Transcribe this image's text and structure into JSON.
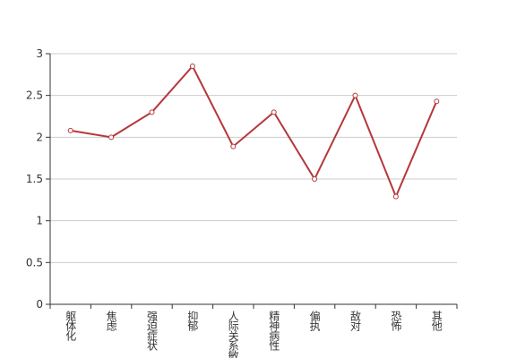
{
  "chart_data": {
    "type": "line",
    "categories": [
      "躯体化",
      "焦虑",
      "强迫症状",
      "抑郁",
      "人际关系敏感",
      "精神病性",
      "偏执",
      "敌对",
      "恐怖",
      "其他"
    ],
    "values": [
      2.08,
      2.0,
      2.3,
      2.85,
      1.89,
      2.3,
      1.5,
      2.5,
      1.29,
      2.43
    ],
    "color": "#b5373a",
    "ylim": [
      0,
      3
    ],
    "yticks": [
      0,
      0.5,
      1,
      1.5,
      2,
      2.5,
      3
    ],
    "grid": true
  }
}
